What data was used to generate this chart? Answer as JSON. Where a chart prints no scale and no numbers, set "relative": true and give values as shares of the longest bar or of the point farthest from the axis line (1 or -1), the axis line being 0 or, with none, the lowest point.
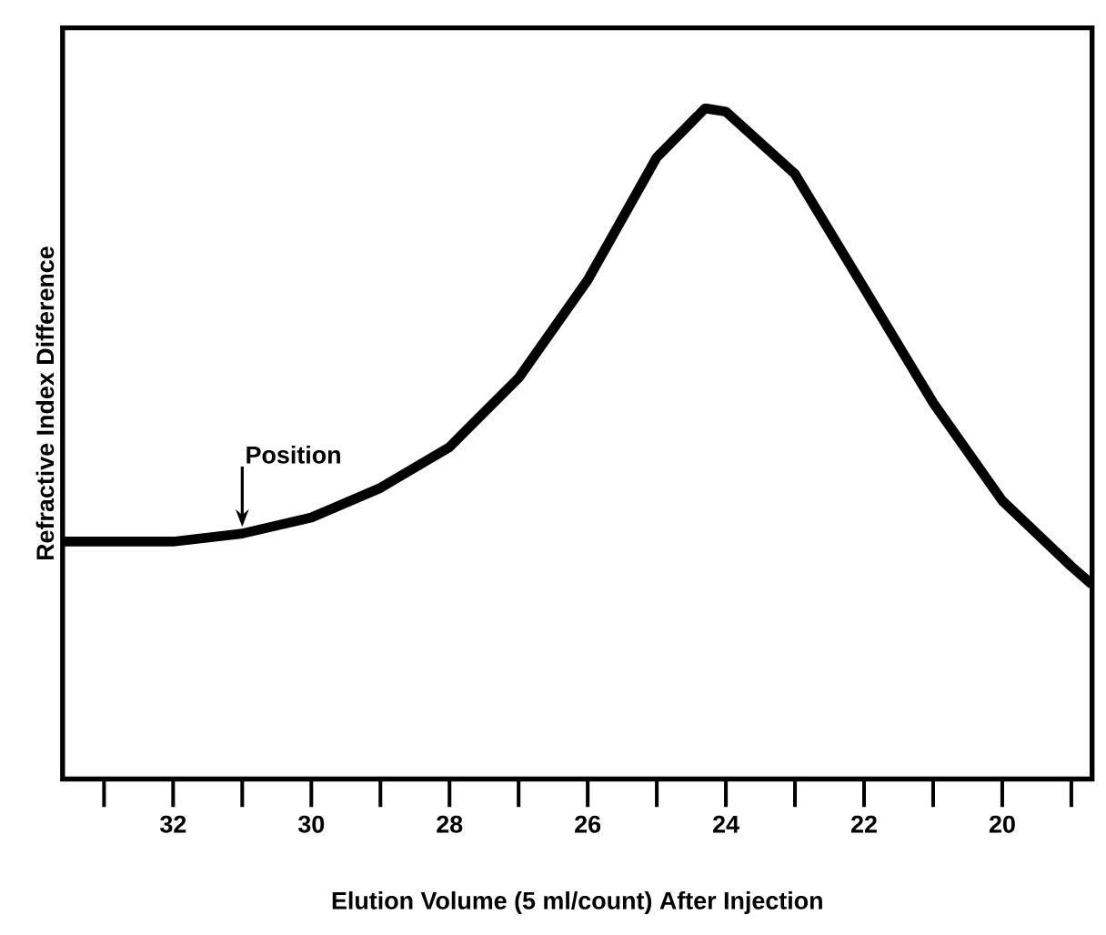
{
  "chart_data": {
    "type": "line",
    "relative": true,
    "xlabel": "Elution Volume (5 ml/count) After Injection",
    "ylabel": "Refractive Index Difference",
    "x": [
      33.6,
      32,
      31,
      30,
      29,
      28,
      27,
      26,
      25,
      24.3,
      24,
      23,
      22,
      21,
      20,
      19,
      18.7
    ],
    "values": [
      0.354,
      0.354,
      0.366,
      0.39,
      0.434,
      0.495,
      0.598,
      0.744,
      0.927,
      1,
      0.995,
      0.902,
      0.732,
      0.561,
      0.415,
      0.317,
      0.29
    ],
    "color": "#000000",
    "xlim": [
      33.6,
      18.7
    ],
    "xticks": [
      {
        "value": 33,
        "label": null
      },
      32,
      {
        "value": 31,
        "label": null
      },
      30,
      {
        "value": 29,
        "label": null
      },
      28,
      {
        "value": 27,
        "label": null
      },
      26,
      {
        "value": 25,
        "label": null
      },
      24,
      {
        "value": 23,
        "label": null
      },
      22,
      {
        "value": 21,
        "label": null
      },
      20,
      {
        "value": 19,
        "label": null
      }
    ],
    "annotations": [
      {
        "text": "Position",
        "x": 31,
        "y": 0.366
      }
    ]
  }
}
